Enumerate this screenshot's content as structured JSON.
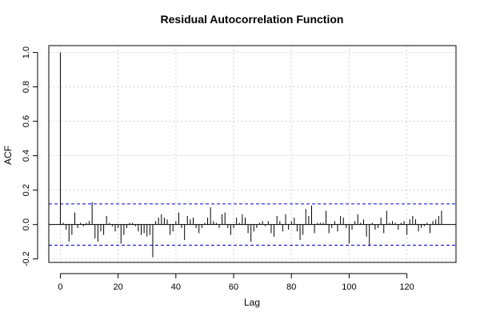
{
  "chart_data": {
    "type": "bar",
    "title": "Residual Autocorrelation Function",
    "xlabel": "Lag",
    "ylabel": "ACF",
    "xlim": [
      -4,
      137
    ],
    "ylim": [
      -0.22,
      1.04
    ],
    "x_ticks": [
      0,
      20,
      40,
      60,
      80,
      100,
      120
    ],
    "y_ticks": [
      -0.2,
      0.0,
      0.2,
      0.4,
      0.6,
      0.8,
      1.0
    ],
    "x_tick_labels": [
      "0",
      "20",
      "40",
      "60",
      "80",
      "100",
      "120"
    ],
    "y_tick_labels": [
      "-0.2",
      "0.0",
      "0.2",
      "0.4",
      "0.6",
      "0.8",
      "1.0"
    ],
    "grid": true,
    "confidence_bounds": [
      0.12,
      -0.12
    ],
    "colors": {
      "bars": "#000000",
      "bounds": "#0000cc",
      "grid": "#d3d3d3",
      "axis": "#000000"
    },
    "lags": [
      0,
      1,
      2,
      3,
      4,
      5,
      6,
      7,
      8,
      9,
      10,
      11,
      12,
      13,
      14,
      15,
      16,
      17,
      18,
      19,
      20,
      21,
      22,
      23,
      24,
      25,
      26,
      27,
      28,
      29,
      30,
      31,
      32,
      33,
      34,
      35,
      36,
      37,
      38,
      39,
      40,
      41,
      42,
      43,
      44,
      45,
      46,
      47,
      48,
      49,
      50,
      51,
      52,
      53,
      54,
      55,
      56,
      57,
      58,
      59,
      60,
      61,
      62,
      63,
      64,
      65,
      66,
      67,
      68,
      69,
      70,
      71,
      72,
      73,
      74,
      75,
      76,
      77,
      78,
      79,
      80,
      81,
      82,
      83,
      84,
      85,
      86,
      87,
      88,
      89,
      90,
      91,
      92,
      93,
      94,
      95,
      96,
      97,
      98,
      99,
      100,
      101,
      102,
      103,
      104,
      105,
      106,
      107,
      108,
      109,
      110,
      111,
      112,
      113,
      114,
      115,
      116,
      117,
      118,
      119,
      120,
      121,
      122,
      123,
      124,
      125,
      126,
      127,
      128,
      129,
      130,
      131,
      132
    ],
    "values": [
      1.0,
      0.01,
      -0.03,
      -0.1,
      -0.06,
      0.07,
      -0.02,
      0.01,
      -0.01,
      0.01,
      0.02,
      0.13,
      -0.08,
      -0.1,
      -0.04,
      -0.06,
      0.05,
      0.01,
      -0.01,
      -0.04,
      -0.02,
      -0.11,
      -0.06,
      -0.02,
      0.01,
      0.01,
      -0.01,
      -0.04,
      -0.06,
      -0.05,
      -0.07,
      -0.06,
      -0.19,
      0.02,
      0.04,
      0.06,
      0.04,
      0.03,
      -0.06,
      -0.04,
      0.02,
      0.07,
      -0.02,
      -0.09,
      0.05,
      0.03,
      0.04,
      -0.02,
      -0.05,
      -0.02,
      0.01,
      0.04,
      0.1,
      0.02,
      0.01,
      -0.02,
      0.06,
      0.07,
      -0.02,
      -0.06,
      -0.02,
      0.04,
      0.01,
      0.06,
      0.04,
      -0.05,
      -0.1,
      -0.04,
      -0.02,
      0.01,
      0.02,
      -0.01,
      0.02,
      -0.05,
      -0.07,
      0.05,
      0.02,
      -0.04,
      0.06,
      -0.03,
      0.02,
      0.04,
      -0.04,
      -0.09,
      -0.06,
      0.09,
      0.05,
      0.11,
      -0.05,
      0.01,
      0.01,
      0.01,
      0.08,
      -0.05,
      -0.02,
      0.02,
      -0.04,
      0.05,
      0.04,
      -0.02,
      -0.11,
      -0.03,
      0.02,
      0.06,
      0.01,
      0.03,
      -0.07,
      -0.12,
      0.01,
      -0.03,
      -0.02,
      0.04,
      -0.05,
      0.08,
      0.01,
      0.02,
      0.01,
      -0.03,
      0.01,
      0.02,
      -0.06,
      0.03,
      0.05,
      0.03,
      -0.04,
      -0.02,
      -0.01,
      0.01,
      -0.05,
      0.02,
      0.03,
      0.05,
      0.08
    ]
  }
}
